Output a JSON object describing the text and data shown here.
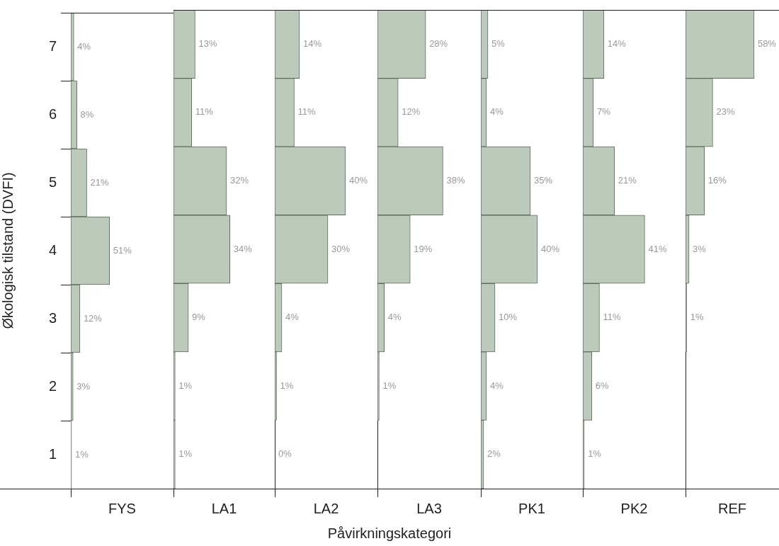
{
  "chart_data": [
    {
      "type": "bar",
      "orientation": "horizontal",
      "xlabel": "FYS",
      "ylabel": "Økologisk tilstand (DVFI)",
      "annotations": [
        "Påvirkningskategori"
      ],
      "categories": [
        "7",
        "6",
        "5",
        "4",
        "3",
        "2",
        "1"
      ],
      "color": "#bccabb",
      "xlim": [
        0,
        135
      ],
      "tick_labels": "y",
      "grid": false,
      "values": [
        4,
        8,
        21,
        51,
        12,
        3,
        1
      ],
      "value_labels": [
        "4%",
        "8%",
        "21%",
        "51%",
        "12%",
        "3%",
        "1%"
      ]
    },
    {
      "type": "bar",
      "orientation": "horizontal",
      "xlabel": "LA1",
      "categories": [
        "7",
        "6",
        "5",
        "4",
        "3",
        "2",
        "1"
      ],
      "color": "#bccabb",
      "xlim": [
        0,
        61
      ],
      "tick_labels": false,
      "grid": false,
      "values": [
        13,
        11,
        32,
        34,
        9,
        1,
        1
      ],
      "value_labels": [
        "13%",
        "11%",
        "32%",
        "34%",
        "9%",
        "1%",
        "1%"
      ]
    },
    {
      "type": "bar",
      "orientation": "horizontal",
      "xlabel": "LA2",
      "categories": [
        "7",
        "6",
        "5",
        "4",
        "3",
        "2",
        "1"
      ],
      "color": "#bccabb",
      "xlim": [
        0,
        58
      ],
      "tick_labels": false,
      "grid": false,
      "values": [
        14,
        11,
        40,
        30,
        4,
        1,
        0
      ],
      "value_labels": [
        "14%",
        "11%",
        "40%",
        "30%",
        "4%",
        "1%",
        "0%"
      ]
    },
    {
      "type": "bar",
      "orientation": "horizontal",
      "xlabel": "LA3",
      "categories": [
        "7",
        "6",
        "5",
        "4",
        "3",
        "2",
        "1"
      ],
      "color": "#bccabb",
      "xlim": [
        0,
        60
      ],
      "tick_labels": false,
      "grid": false,
      "values": [
        28,
        12,
        38,
        19,
        4,
        1,
        null
      ],
      "value_labels": [
        "28%",
        "12%",
        "38%",
        "19%",
        "4%",
        "1%",
        null
      ]
    },
    {
      "type": "bar",
      "orientation": "horizontal",
      "xlabel": "PK1",
      "categories": [
        "7",
        "6",
        "5",
        "4",
        "3",
        "2",
        "1"
      ],
      "color": "#bccabb",
      "xlim": [
        0,
        72
      ],
      "tick_labels": false,
      "grid": false,
      "values": [
        5,
        4,
        35,
        40,
        10,
        4,
        2
      ],
      "value_labels": [
        "5%",
        "4%",
        "35%",
        "40%",
        "10%",
        "4%",
        "2%"
      ]
    },
    {
      "type": "bar",
      "orientation": "horizontal",
      "xlabel": "PK2",
      "categories": [
        "7",
        "6",
        "5",
        "4",
        "3",
        "2",
        "1"
      ],
      "color": "#bccabb",
      "xlim": [
        0,
        68
      ],
      "tick_labels": false,
      "grid": false,
      "values": [
        14,
        7,
        21,
        41,
        11,
        6,
        1
      ],
      "value_labels": [
        "14%",
        "7%",
        "21%",
        "41%",
        "11%",
        "6%",
        "1%"
      ]
    },
    {
      "type": "bar",
      "orientation": "horizontal",
      "xlabel": "REF",
      "categories": [
        "7",
        "6",
        "5",
        "4",
        "3",
        "2",
        "1"
      ],
      "color": "#bccabb",
      "xlim": [
        0,
        79
      ],
      "tick_labels": false,
      "grid": false,
      "values": [
        58,
        23,
        16,
        3,
        1,
        null,
        null
      ],
      "value_labels": [
        "58%",
        "23%",
        "16%",
        "3%",
        "1%",
        null,
        null
      ]
    }
  ]
}
